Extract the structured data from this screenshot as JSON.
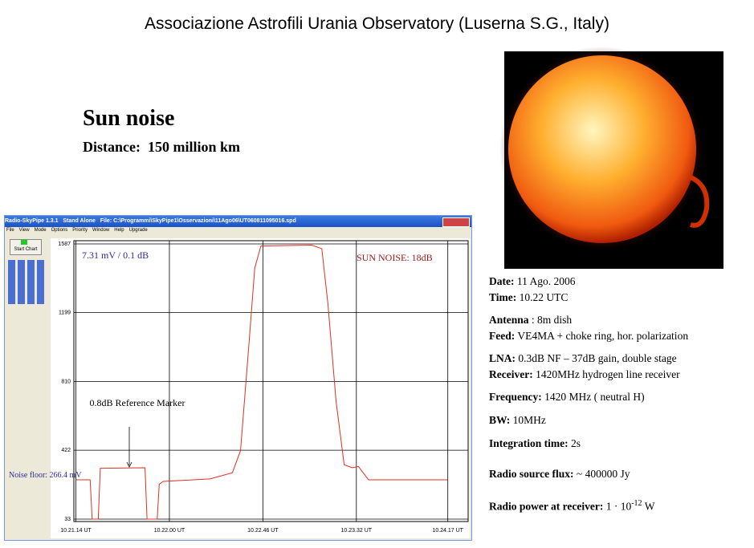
{
  "header": {
    "title": "Associazione Astrofili Urania Observatory (Luserna S.G., Italy)"
  },
  "heading": {
    "title": "Sun noise",
    "distance": "Distance:  150 million km"
  },
  "window": {
    "title": "Radio-SkyPipe 1.3.1   Stand Alone   File: C:\\Programmi\\SkyPipe1\\Osservazioni\\11Ago06\\UT060811095016.spd",
    "menu": [
      "File",
      "View",
      "Mode",
      "Options",
      "Priority",
      "Window",
      "Help",
      "Upgrade"
    ],
    "start_button": "Start Chart"
  },
  "chart_data": {
    "type": "line",
    "x": [
      38474,
      38481,
      38482,
      38485,
      38486,
      38508,
      38509,
      38514,
      38515,
      38517,
      38540,
      38551,
      38555,
      38559,
      38562,
      38565,
      38590,
      38595,
      38598,
      38602,
      38606,
      38610,
      38613,
      38618,
      38657
    ],
    "series": [
      {
        "name": "Signal",
        "color": "#e03020",
        "values": [
          255,
          255,
          33,
          33,
          320,
          323,
          33,
          33,
          230,
          246,
          260,
          295,
          420,
          1000,
          1450,
          1575,
          1580,
          1560,
          1250,
          700,
          340,
          323,
          330,
          255,
          255
        ]
      }
    ],
    "xlim": [
      38473,
      38667
    ],
    "xticks": [
      {
        "value": 38474,
        "label": "10.21.14 UT"
      },
      {
        "value": 38520,
        "label": "10.22.00 UT"
      },
      {
        "value": 38566,
        "label": "10.22.46 UT"
      },
      {
        "value": 38612,
        "label": "10.23.32 UT"
      },
      {
        "value": 38657,
        "label": "10.24.17 UT"
      }
    ],
    "ylim": [
      33,
      1587
    ],
    "yticks": [
      33,
      422,
      810,
      1199,
      1587
    ],
    "grid": true,
    "annotations": [
      "7.31 mV / 0.1 dB",
      "SUN NOISE: 18dB",
      "0.8dB Reference Marker",
      "Noise floor: 266.4 mV"
    ]
  },
  "details": [
    {
      "label": "Date:",
      "value": " 11 Ago. 2006"
    },
    {
      "label": "Time:",
      "value": " 10.22 UTC"
    },
    {
      "label": "Antenna",
      "value": " : 8m dish"
    },
    {
      "label": "Feed:",
      "value": " VE4MA + choke ring, hor. polarization"
    },
    {
      "label": "LNA:",
      "value": " 0.3dB NF – 37dB gain, double stage"
    },
    {
      "label": "Receiver:",
      "value": " 1420MHz hydrogen line receiver"
    },
    {
      "label": "Frequency:",
      "value": " 1420 MHz ( neutral H)"
    },
    {
      "label": "BW:",
      "value": " 10MHz"
    },
    {
      "label": "Integration time:",
      "value": " 2s"
    },
    {
      "label": "Radio source flux:",
      "value": " ~ 400000 Jy"
    },
    {
      "label": "Radio power at receiver:",
      "value": " 1 · 10",
      "exponent": "-12",
      "unit": " W"
    }
  ]
}
